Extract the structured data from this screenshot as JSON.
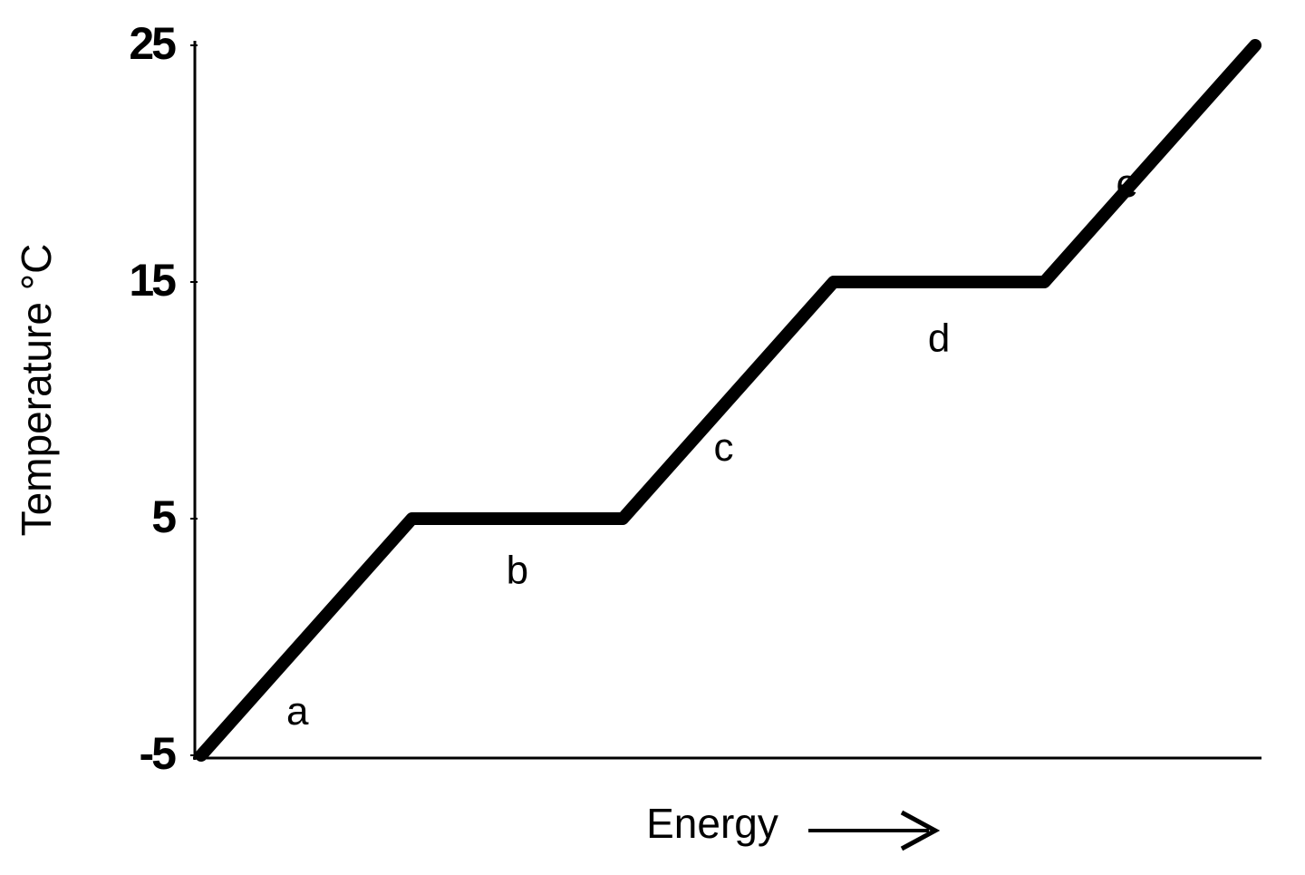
{
  "chart_data": {
    "type": "line",
    "y_label": "Temperature °C",
    "x_label": "Energy",
    "x": [
      0,
      20,
      40,
      60,
      80,
      100
    ],
    "values": [
      -5,
      5,
      5,
      15,
      15,
      25
    ],
    "color": "#000000",
    "xlim": [
      0,
      100
    ],
    "ylim": [
      -5,
      25
    ],
    "yticks": [
      -5,
      5,
      15,
      25
    ],
    "annotations": [
      "a",
      "b",
      "c",
      "d",
      "e"
    ]
  }
}
